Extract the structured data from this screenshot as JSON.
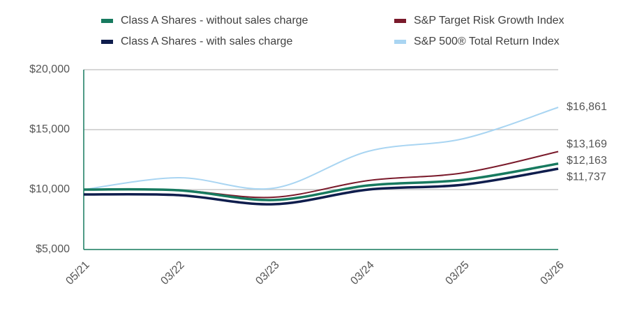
{
  "chart_data": {
    "type": "line",
    "categories": [
      "05/21",
      "03/22",
      "03/23",
      "03/24",
      "03/25",
      "03/26"
    ],
    "series": [
      {
        "name": "Class A Shares - without sales charge",
        "color": "#177a5f",
        "values": [
          10000,
          9940,
          9128,
          10349,
          10814,
          12163
        ],
        "value_labels": [
          null,
          null,
          null,
          null,
          null,
          "$12,163"
        ]
      },
      {
        "name": "Class A Shares - with sales charge",
        "color": "#0f1d4d",
        "values": [
          9593,
          9535,
          8779,
          10000,
          10407,
          11737
        ],
        "value_labels": [
          null,
          null,
          null,
          null,
          null,
          "$11,737"
        ]
      },
      {
        "name": "S&P Target Risk Growth Index",
        "color": "#7a1a2b",
        "values": [
          10000,
          9950,
          9360,
          10756,
          11395,
          13169
        ],
        "value_labels": [
          null,
          null,
          null,
          null,
          null,
          "$13,169"
        ]
      },
      {
        "name": "S&P 500® Total Return Index",
        "color": "#a9d5f2",
        "values": [
          10000,
          10988,
          10116,
          13198,
          14244,
          16861
        ],
        "value_labels": [
          null,
          null,
          null,
          null,
          null,
          "$16,861"
        ]
      }
    ],
    "ylim": [
      5000,
      20000
    ],
    "yticks": [
      {
        "value": 5000,
        "label": "$5,000"
      },
      {
        "value": 10000,
        "label": "$10,000"
      },
      {
        "value": 15000,
        "label": "$15,000"
      },
      {
        "value": 20000,
        "label": "$20,000"
      }
    ],
    "grid": true
  }
}
